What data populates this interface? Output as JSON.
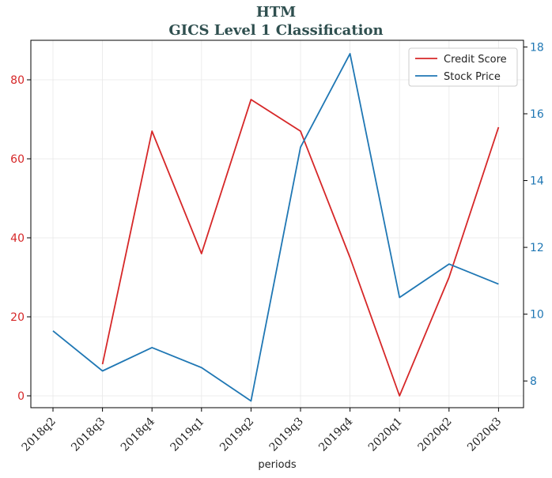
{
  "chart_data": {
    "type": "line",
    "title": "HTM",
    "subtitle": "GICS Level 1 Classification",
    "xlabel": "periods",
    "categories": [
      "2018q2",
      "2018q3",
      "2018q4",
      "2019q1",
      "2019q2",
      "2019q3",
      "2019q4",
      "2020q1",
      "2020q2",
      "2020q3"
    ],
    "left_axis": {
      "ylim": [
        -3,
        90
      ],
      "ticks": [
        0,
        20,
        40,
        60,
        80
      ],
      "tick_labels": [
        "0",
        "20",
        "40",
        "60",
        "80"
      ],
      "color": "#d62728"
    },
    "right_axis": {
      "ylim": [
        7.2,
        18.2
      ],
      "ticks": [
        8,
        10,
        12,
        14,
        16,
        18
      ],
      "tick_labels": [
        "8",
        "10",
        "12",
        "14",
        "16",
        "18"
      ],
      "color": "#1f77b4"
    },
    "series": [
      {
        "name": "Credit Score",
        "axis": "left",
        "color": "#d62728",
        "values": [
          null,
          8,
          67,
          36,
          75,
          67,
          35,
          0,
          30,
          68
        ]
      },
      {
        "name": "Stock Price",
        "axis": "right",
        "color": "#1f77b4",
        "values": [
          9.5,
          8.3,
          9.0,
          8.4,
          7.4,
          15.0,
          17.8,
          10.5,
          11.5,
          10.9
        ]
      }
    ],
    "grid": true,
    "legend_position": "top-right"
  }
}
